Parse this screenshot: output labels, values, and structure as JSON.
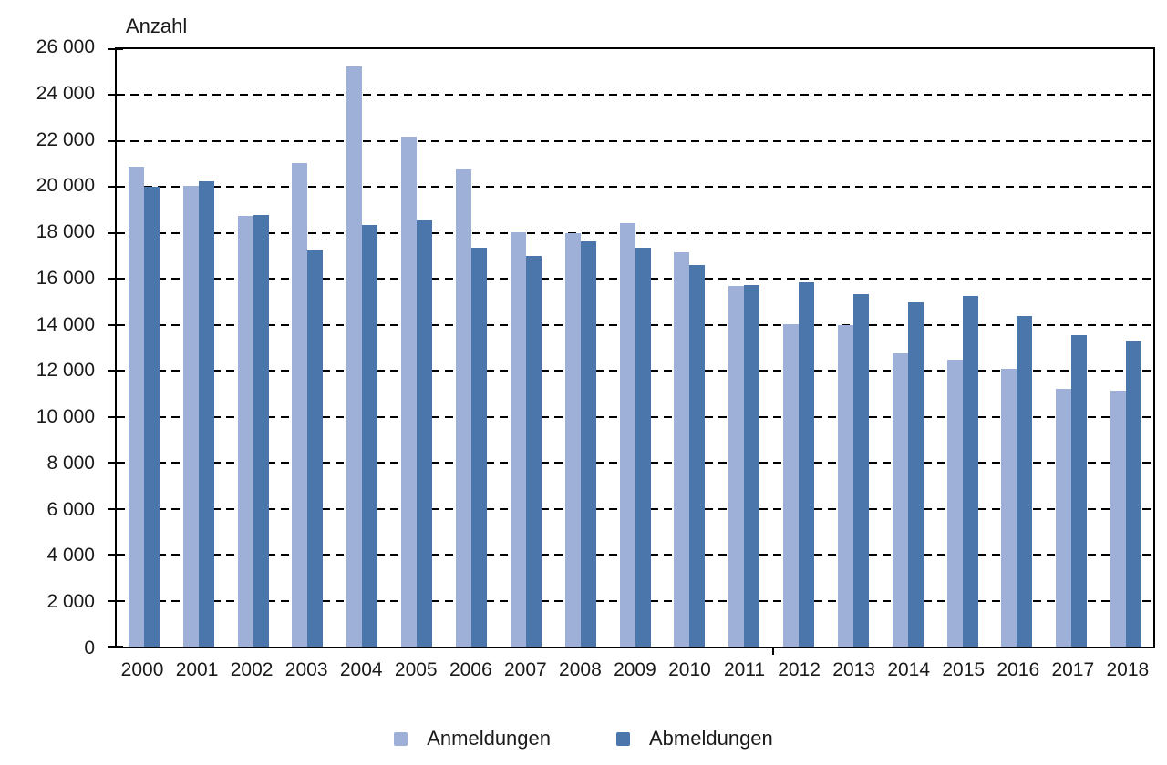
{
  "page": {
    "background": "#ffffff",
    "axis_color": "#000000",
    "text_color": "#1a1a1a"
  },
  "chart_data": {
    "type": "bar",
    "title": "Anzahl",
    "xlabel": "",
    "ylabel": "Anzahl",
    "ylim": [
      0,
      26000
    ],
    "ytick_step": 2000,
    "ytick_labels": [
      "0",
      "2 000",
      "4 000",
      "6 000",
      "8 000",
      "10 000",
      "12 000",
      "14 000",
      "16 000",
      "18 000",
      "20 000",
      "22 000",
      "24 000",
      "26 000"
    ],
    "grid": "horizontal-dashed",
    "legend_position": "bottom-center",
    "categories": [
      "2000",
      "2001",
      "2002",
      "2003",
      "2004",
      "2005",
      "2006",
      "2007",
      "2008",
      "2009",
      "2010",
      "2011",
      "2012",
      "2013",
      "2014",
      "2015",
      "2016",
      "2017",
      "2018"
    ],
    "series": [
      {
        "name": "Anmeldungen",
        "color": "#9EB0D7",
        "values": [
          20900,
          20050,
          18750,
          21050,
          25250,
          22200,
          20750,
          18050,
          18000,
          18450,
          17150,
          15700,
          14050,
          14000,
          12750,
          12500,
          12100,
          11200,
          11150
        ]
      },
      {
        "name": "Abmeldungen",
        "color": "#4A76AC",
        "values": [
          20000,
          20250,
          18800,
          17250,
          18350,
          18550,
          17350,
          17000,
          17650,
          17350,
          16600,
          15750,
          15850,
          15350,
          15000,
          15250,
          14400,
          13550,
          13300
        ]
      }
    ],
    "stray_x_axis_tick_fraction": 0.632
  }
}
